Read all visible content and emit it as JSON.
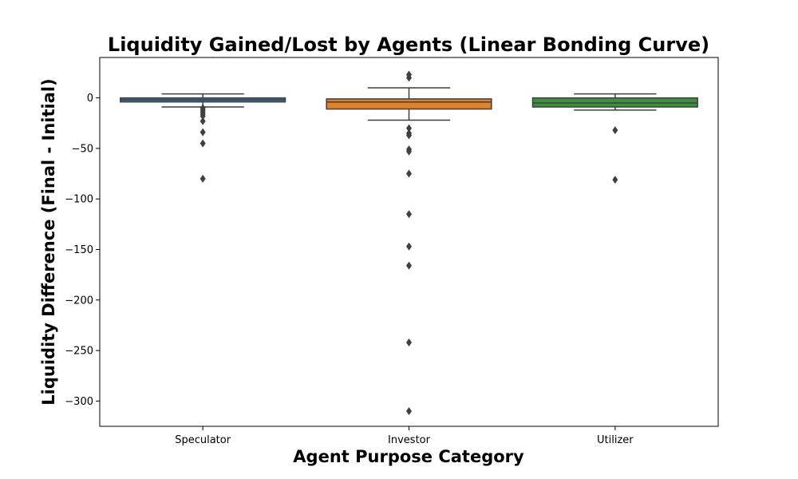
{
  "chart_data": {
    "type": "box",
    "title": "Liquidity Gained/Lost by Agents (Linear Bonding Curve)",
    "xlabel": "Agent Purpose Category",
    "ylabel": "Liquidity Difference (Final - Initial)",
    "ylim": [
      -325,
      40
    ],
    "yticks": [
      0,
      -50,
      -100,
      -150,
      -200,
      -250,
      -300
    ],
    "ytick_labels": [
      "0",
      "−50",
      "−100",
      "−150",
      "−200",
      "−250",
      "−300"
    ],
    "grid": false,
    "categories": [
      "Speculator",
      "Investor",
      "Utilizer"
    ],
    "boxes": [
      {
        "category": "Speculator",
        "color": "#3274a1",
        "whisker_low": -9,
        "q1": -4,
        "median": -2,
        "q3": 0,
        "whisker_high": 4,
        "outliers": [
          -10,
          -12,
          -14,
          -16,
          -18,
          -23,
          -34,
          -45,
          -80
        ]
      },
      {
        "category": "Investor",
        "color": "#e1812c",
        "whisker_low": -22,
        "q1": -11,
        "median": -4,
        "q3": -1,
        "whisker_high": 10,
        "outliers": [
          23,
          20,
          -30,
          -35,
          -37,
          -51,
          -53,
          -75,
          -115,
          -147,
          -166,
          -242,
          -310
        ]
      },
      {
        "category": "Utilizer",
        "color": "#3a923a",
        "whisker_low": -12,
        "q1": -9,
        "median": -5,
        "q3": 0,
        "whisker_high": 4,
        "outliers": [
          -32,
          -81
        ]
      }
    ]
  }
}
